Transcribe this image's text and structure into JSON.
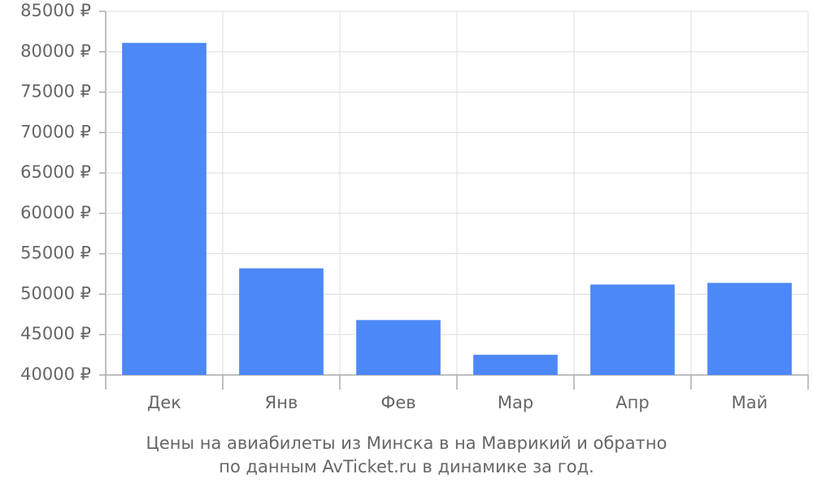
{
  "chart_data": {
    "type": "bar",
    "title": "Цены на авиабилеты из Минска в на Маврикий и обратно",
    "subtitle": "по данным AvTicket.ru в динамике за год.",
    "categories": [
      "Дек",
      "Янв",
      "Фев",
      "Мар",
      "Апр",
      "Май"
    ],
    "values": [
      81100,
      53200,
      46800,
      42500,
      51200,
      51400
    ],
    "color": "#4d88f9",
    "ylim": [
      40000,
      85000
    ],
    "yticks": [
      {
        "value": 40000,
        "label": "40000 ₽"
      },
      {
        "value": 45000,
        "label": "45000 ₽"
      },
      {
        "value": 50000,
        "label": "50000 ₽"
      },
      {
        "value": 55000,
        "label": "55000 ₽"
      },
      {
        "value": 60000,
        "label": "60000 ₽"
      },
      {
        "value": 65000,
        "label": "65000 ₽"
      },
      {
        "value": 70000,
        "label": "70000 ₽"
      },
      {
        "value": 75000,
        "label": "75000 ₽"
      },
      {
        "value": 80000,
        "label": "80000 ₽"
      },
      {
        "value": 85000,
        "label": "85000 ₽"
      }
    ],
    "grid": true
  }
}
